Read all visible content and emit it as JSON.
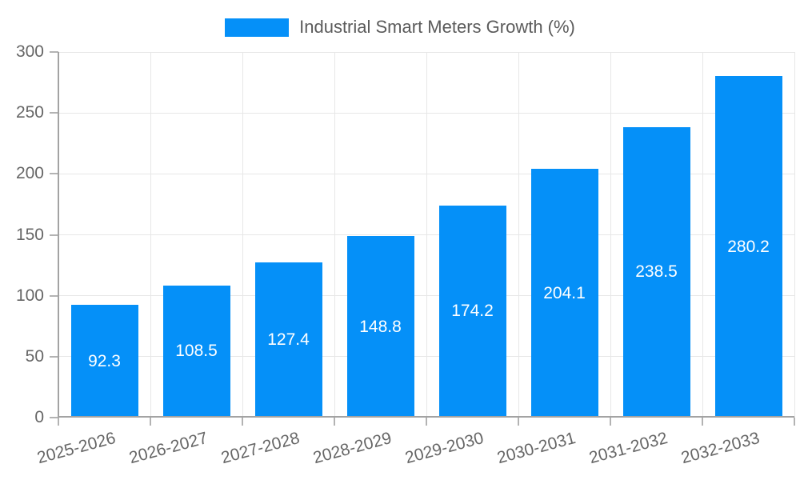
{
  "chart_data": {
    "type": "bar",
    "title": "",
    "xlabel": "",
    "ylabel": "",
    "categories": [
      "2025-2026",
      "2026-2027",
      "2027-2028",
      "2028-2029",
      "2029-2030",
      "2030-2031",
      "2031-2032",
      "2032-2033"
    ],
    "values": [
      92.3,
      108.5,
      127.4,
      148.8,
      174.2,
      204.1,
      238.5,
      280.2
    ],
    "value_labels": [
      "92.3",
      "108.5",
      "127.4",
      "148.8",
      "174.2",
      "204.1",
      "238.5",
      "280.2"
    ],
    "series_name": "Industrial Smart Meters Growth (%)",
    "ylim": [
      0,
      300
    ],
    "y_ticks": [
      0,
      50,
      100,
      150,
      200,
      250,
      300
    ],
    "grid": true,
    "legend_position": "top-center",
    "x_label_rotation_deg": -15
  },
  "colors": {
    "bar": "#0590f8",
    "grid": "#e7e7e7",
    "axis": "#a3a3a3",
    "tick": "#b3b3b3",
    "axis_text": "#666666",
    "legend_text": "#5b5b5b",
    "value_text": "#ffffff",
    "background": "#ffffff"
  }
}
